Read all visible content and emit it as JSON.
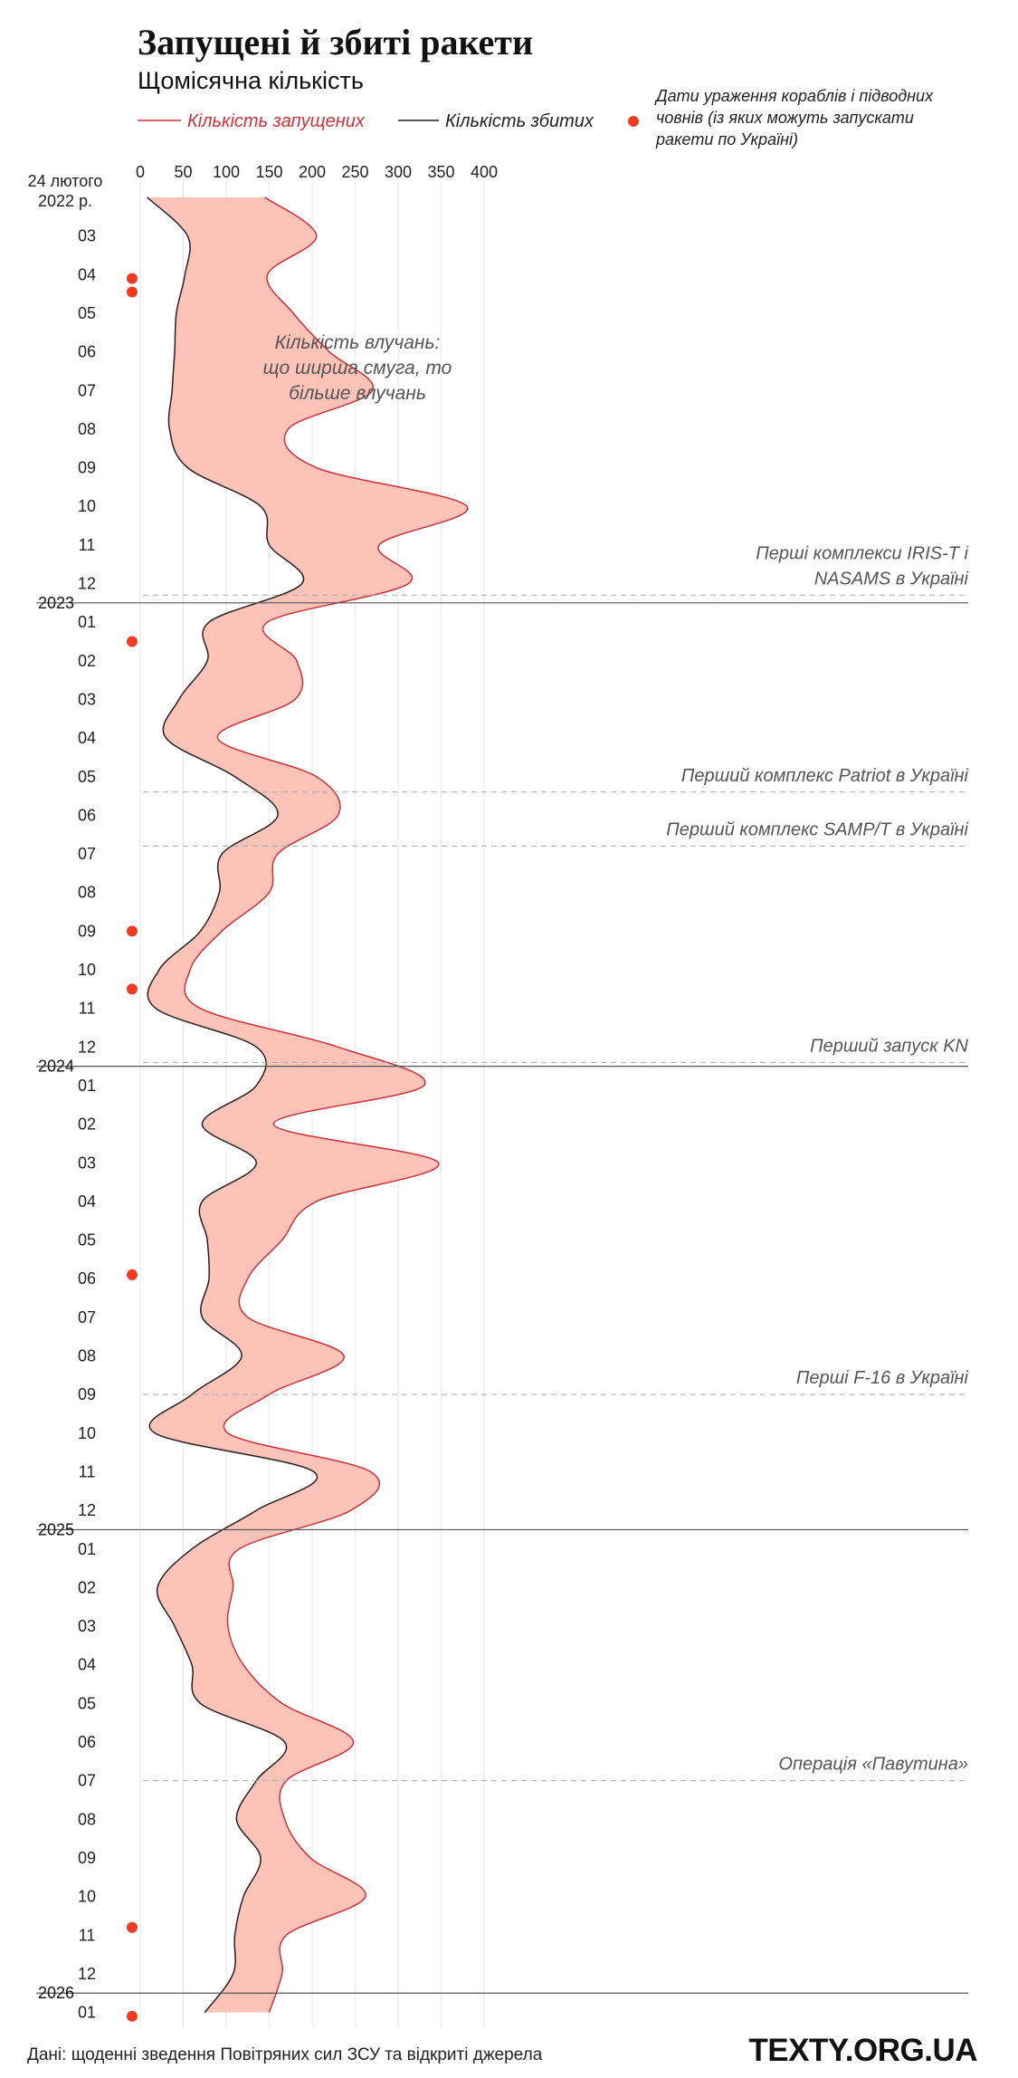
{
  "header": {
    "title": "Запущені й збиті ракети",
    "subtitle": "Щомісячна кількість"
  },
  "legend": {
    "launched": "Кількість запущених",
    "shot_down": "Кількість збитих",
    "strike_dates": [
      "Дати ураження кораблів і підводних",
      "човнів (із яких можуть запускати",
      "ракети по Україні)"
    ]
  },
  "footer": {
    "source": "Дані: щоденні зведення Повітряних сил ЗСУ та відкриті джерела",
    "brand": "TEXTY.ORG.UA"
  },
  "band_note": [
    "Кількість влучань:",
    "що ширша смуга, то",
    "більше влучань"
  ],
  "colors": {
    "launched_line": "#d0303a",
    "band_fill": "#fdc3b8",
    "shot_line": "#222222",
    "dot": "#ee3b24",
    "grid": "#e6e6e6",
    "year_line": "#555555",
    "event_line": "#aaaaaa"
  },
  "chart_data": {
    "type": "area",
    "orientation": "vertical",
    "x_axis": {
      "ticks": [
        0,
        50,
        100,
        150,
        200,
        250,
        300,
        350,
        400
      ],
      "range": [
        0,
        400
      ]
    },
    "start_label": [
      "24 лютого",
      "2022 р."
    ],
    "months": [
      {
        "label": "",
        "launched": 145,
        "shot": 8
      },
      {
        "label": "03",
        "launched": 205,
        "shot": 55
      },
      {
        "label": "04",
        "launched": 148,
        "shot": 52
      },
      {
        "label": "05",
        "launched": 178,
        "shot": 42
      },
      {
        "label": "06",
        "launched": 220,
        "shot": 40
      },
      {
        "label": "07",
        "launched": 270,
        "shot": 37
      },
      {
        "label": "08",
        "launched": 172,
        "shot": 34
      },
      {
        "label": "09",
        "launched": 205,
        "shot": 55
      },
      {
        "label": "10",
        "launched": 380,
        "shot": 140
      },
      {
        "label": "11",
        "launched": 278,
        "shot": 150
      },
      {
        "label": "12",
        "launched": 312,
        "shot": 188
      },
      {
        "label": "01",
        "launched": 148,
        "shot": 80
      },
      {
        "label": "02",
        "launched": 182,
        "shot": 78
      },
      {
        "label": "03",
        "launched": 180,
        "shot": 45
      },
      {
        "label": "04",
        "launched": 90,
        "shot": 30
      },
      {
        "label": "05",
        "launched": 205,
        "shot": 110
      },
      {
        "label": "06",
        "launched": 230,
        "shot": 160
      },
      {
        "label": "07",
        "launched": 160,
        "shot": 95
      },
      {
        "label": "08",
        "launched": 150,
        "shot": 92
      },
      {
        "label": "09",
        "launched": 95,
        "shot": 70
      },
      {
        "label": "10",
        "launched": 58,
        "shot": 22
      },
      {
        "label": "11",
        "launched": 70,
        "shot": 18
      },
      {
        "label": "12",
        "launched": 230,
        "shot": 135
      },
      {
        "label": "01",
        "launched": 330,
        "shot": 135
      },
      {
        "label": "02",
        "launched": 155,
        "shot": 72
      },
      {
        "label": "03",
        "launched": 347,
        "shot": 135
      },
      {
        "label": "04",
        "launched": 205,
        "shot": 72
      },
      {
        "label": "05",
        "launched": 165,
        "shot": 78
      },
      {
        "label": "06",
        "launched": 125,
        "shot": 80
      },
      {
        "label": "07",
        "launched": 125,
        "shot": 72
      },
      {
        "label": "08",
        "launched": 237,
        "shot": 118
      },
      {
        "label": "09",
        "launched": 150,
        "shot": 60
      },
      {
        "label": "10",
        "launched": 102,
        "shot": 17
      },
      {
        "label": "11",
        "launched": 268,
        "shot": 202
      },
      {
        "label": "12",
        "launched": 245,
        "shot": 135
      },
      {
        "label": "01",
        "launched": 115,
        "shot": 60
      },
      {
        "label": "02",
        "launched": 108,
        "shot": 20
      },
      {
        "label": "03",
        "launched": 102,
        "shot": 40
      },
      {
        "label": "04",
        "launched": 120,
        "shot": 60
      },
      {
        "label": "05",
        "launched": 165,
        "shot": 70
      },
      {
        "label": "06",
        "launched": 248,
        "shot": 168
      },
      {
        "label": "07",
        "launched": 170,
        "shot": 135
      },
      {
        "label": "08",
        "launched": 168,
        "shot": 112
      },
      {
        "label": "09",
        "launched": 198,
        "shot": 140
      },
      {
        "label": "10",
        "launched": 262,
        "shot": 120
      },
      {
        "label": "11",
        "launched": 170,
        "shot": 110
      },
      {
        "label": "12",
        "launched": 165,
        "shot": 108
      },
      {
        "label": "01",
        "launched": 150,
        "shot": 75
      }
    ],
    "year_breaks": [
      {
        "label": "2023",
        "before_index": 11
      },
      {
        "label": "2024",
        "before_index": 23
      },
      {
        "label": "2025",
        "before_index": 35
      },
      {
        "label": "2026",
        "before_index": 47
      }
    ],
    "events": [
      {
        "lines": [
          "Перші комплекси IRIS-T і",
          "NASAMS в Україні"
        ],
        "at": 10.3
      },
      {
        "lines": [
          "Перший комплекс Patriot в Україні"
        ],
        "at": 15.4
      },
      {
        "lines": [
          "Перший комплекс SAMP/T в Україні"
        ],
        "at": 16.8
      },
      {
        "lines": [
          "Перший запуск KN"
        ],
        "at": 22.4
      },
      {
        "lines": [
          "Перші F-16 в Україні"
        ],
        "at": 31.0
      },
      {
        "lines": [
          "Операція «Павутина»"
        ],
        "at": 41.0
      }
    ],
    "strike_dots": [
      2.1,
      2.45,
      11.5,
      19.0,
      20.5,
      27.9,
      44.8,
      47.1
    ]
  }
}
